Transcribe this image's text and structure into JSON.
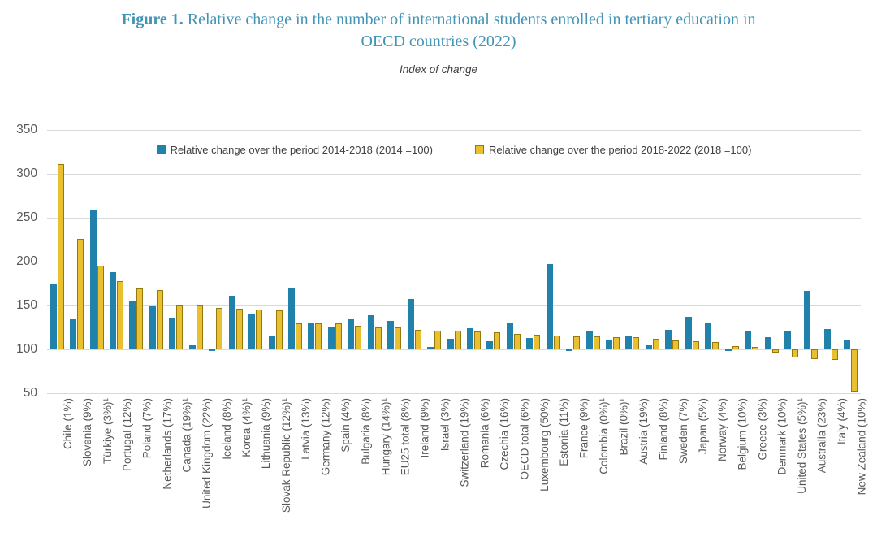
{
  "figure": {
    "title_prefix": "Figure 1.",
    "title_line1": " Relative change in the number of international students enrolled in tertiary education in",
    "title_line2": "OECD countries (2022)",
    "subtitle": "Index of change"
  },
  "chart_data": {
    "type": "bar",
    "title": "Figure 1. Relative change in the number of international students enrolled in tertiary education in OECD countries (2022)",
    "subtitle": "Index of change",
    "baseline": 100,
    "ylim": [
      50,
      350
    ],
    "yticks": [
      50,
      100,
      150,
      200,
      250,
      300,
      350
    ],
    "grid": true,
    "legend_position": "top-center",
    "colors": {
      "series_2014_2018": "#2082aa",
      "series_2018_2022_fill": "#e9c02f",
      "series_2018_2022_border": "#97780c",
      "title_text": "#4494b6",
      "axis_text": "#595959",
      "legend_text": "#404040",
      "gridline": "#d9d9d9"
    },
    "categories": [
      "Chile (1%)",
      "Slovenia (9%)",
      "Türkiye (3%)¹",
      "Portugal (12%)",
      "Poland (7%)",
      "Netherlands (17%)",
      "Canada (19%)¹",
      "United Kingdom (22%)",
      "Iceland (8%)",
      "Korea (4%)¹",
      "Lithuania (9%)",
      "Slovak Republic (12%)¹",
      "Latvia (13%)",
      "Germany (12%)",
      "Spain (4%)",
      "Bulgaria (8%)",
      "Hungary (14%)¹",
      "EU25 total (8%)",
      "Ireland (9%)",
      "Israel (3%)",
      "Switzerland (19%)",
      "Romania (6%)",
      "Czechia (16%)",
      "OECD total (6%)",
      "Luxembourg (50%)",
      "Estonia (11%)",
      "France (9%)",
      "Colombia (0%)¹",
      "Brazil (0%)¹",
      "Austria (19%)",
      "Finland (8%)",
      "Sweden (7%)",
      "Japan (5%)",
      "Norway (4%)",
      "Belgium (10%)",
      "Greece (3%)",
      "Denmark (10%)",
      "United States (5%)¹",
      "Australia (23%)",
      "Italy (4%)",
      "New Zealand (10%)"
    ],
    "series": [
      {
        "name": "Relative change over the period 2014-2018 (2014 =100)",
        "color": "#2082aa",
        "values": [
          175,
          134,
          259,
          188,
          156,
          149,
          136,
          105,
          98,
          161,
          140,
          115,
          169,
          131,
          126,
          134,
          139,
          132,
          157,
          103,
          112,
          124,
          109,
          130,
          113,
          197,
          98,
          121,
          110,
          116,
          105,
          122,
          137,
          131,
          98,
          120,
          114,
          121,
          167,
          123,
          111
        ]
      },
      {
        "name": "Relative change over the period 2018-2022 (2018 =100)",
        "color": "#e9c02f",
        "values": [
          311,
          226,
          195,
          178,
          169,
          168,
          150,
          150,
          147,
          146,
          145,
          144,
          130,
          130,
          130,
          127,
          125,
          125,
          122,
          121,
          121,
          120,
          119,
          118,
          117,
          116,
          115,
          115,
          114,
          114,
          112,
          110,
          109,
          108,
          104,
          103,
          96,
          91,
          89,
          88,
          52
        ]
      }
    ]
  }
}
